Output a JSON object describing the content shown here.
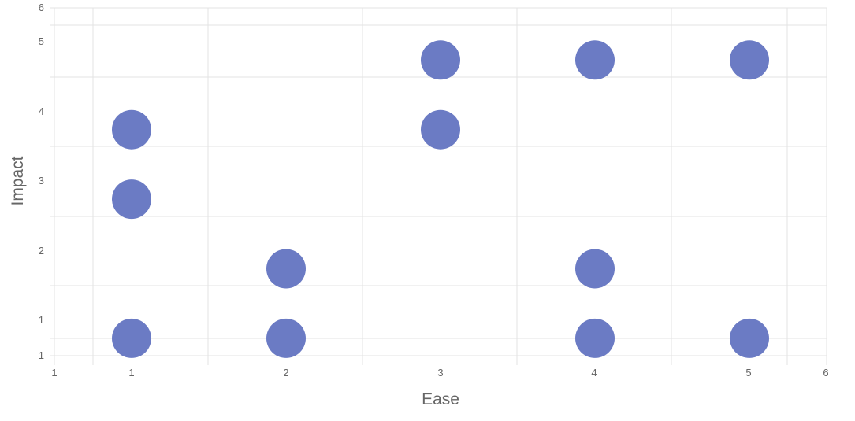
{
  "chart_data": {
    "type": "scatter",
    "xlabel": "Ease",
    "ylabel": "Impact",
    "x_ticks": [
      "1",
      "1",
      "2",
      "3",
      "4",
      "5",
      "6"
    ],
    "y_ticks": [
      "1",
      "1",
      "2",
      "3",
      "4",
      "5",
      "6"
    ],
    "xlim": [
      0.5,
      5.5
    ],
    "ylim": [
      0.75,
      5.75
    ],
    "grid": true,
    "legend": "none",
    "series": [
      {
        "color": "#6b7bc4",
        "points": [
          {
            "x": 1,
            "y": 4
          },
          {
            "x": 1,
            "y": 3
          },
          {
            "x": 1,
            "y": 1
          },
          {
            "x": 2,
            "y": 2
          },
          {
            "x": 2,
            "y": 1
          },
          {
            "x": 3,
            "y": 5
          },
          {
            "x": 3,
            "y": 4
          },
          {
            "x": 4,
            "y": 5
          },
          {
            "x": 4,
            "y": 2
          },
          {
            "x": 4,
            "y": 1
          },
          {
            "x": 5,
            "y": 5
          },
          {
            "x": 5,
            "y": 1
          }
        ]
      }
    ]
  }
}
